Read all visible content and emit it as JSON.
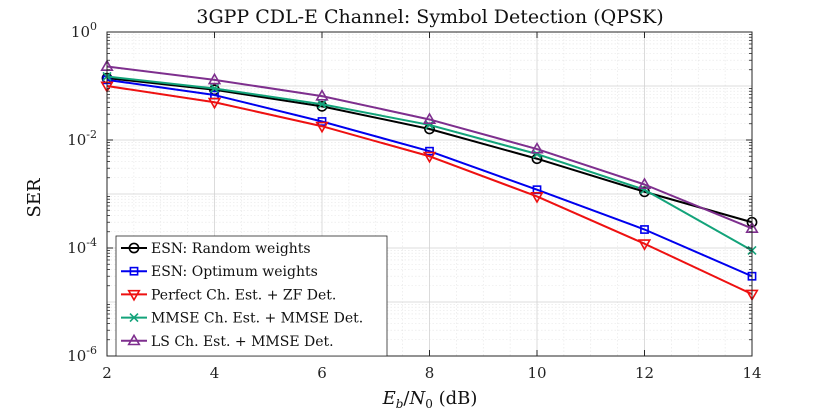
{
  "chart_data": {
    "type": "line",
    "title": "3GPP CDL-E Channel: Symbol Detection (QPSK)",
    "xlabel": "E_b/N_0 (dB)",
    "xlabel_parts": {
      "E": "E",
      "b": "b",
      "slash": "/",
      "N": "N",
      "zero": "0",
      "unit": " (dB)"
    },
    "ylabel": "SER",
    "x": [
      2,
      4,
      6,
      8,
      10,
      12,
      14
    ],
    "xlim": [
      2,
      14
    ],
    "ylim": [
      1e-06,
      1
    ],
    "yscale": "log",
    "x_ticks": [
      "2",
      "4",
      "6",
      "8",
      "10",
      "12",
      "14"
    ],
    "y_ticks": [
      {
        "base": "10",
        "exp": "0",
        "value": 1
      },
      {
        "base": "10",
        "exp": "-2",
        "value": 0.01
      },
      {
        "base": "10",
        "exp": "-4",
        "value": 0.0001
      },
      {
        "base": "10",
        "exp": "-6",
        "value": 1e-06
      }
    ],
    "grid": true,
    "legend_position": "bottom-left",
    "series": [
      {
        "name": "ESN: Random weights",
        "color": "#000000",
        "marker": "circle",
        "values": [
          0.14,
          0.085,
          0.042,
          0.016,
          0.0045,
          0.0011,
          0.0003
        ]
      },
      {
        "name": "ESN: Optimum weights",
        "color": "#0000ee",
        "marker": "square",
        "values": [
          0.13,
          0.068,
          0.022,
          0.0062,
          0.0012,
          0.00022,
          3e-05
        ]
      },
      {
        "name": "Perfect Ch. Est. + ZF Det.",
        "color": "#ee1111",
        "marker": "triangle-down",
        "values": [
          0.1,
          0.05,
          0.018,
          0.005,
          0.0009,
          0.00012,
          1.4e-05
        ]
      },
      {
        "name": "MMSE Ch. Est. + MMSE Det.",
        "color": "#13a37a",
        "marker": "x",
        "values": [
          0.15,
          0.09,
          0.046,
          0.019,
          0.0055,
          0.0012,
          9e-05
        ]
      },
      {
        "name": "LS Ch. Est. + MMSE Det.",
        "color": "#7e2f8e",
        "marker": "triangle-up",
        "values": [
          0.23,
          0.13,
          0.065,
          0.024,
          0.0068,
          0.0015,
          0.00023
        ]
      }
    ]
  }
}
